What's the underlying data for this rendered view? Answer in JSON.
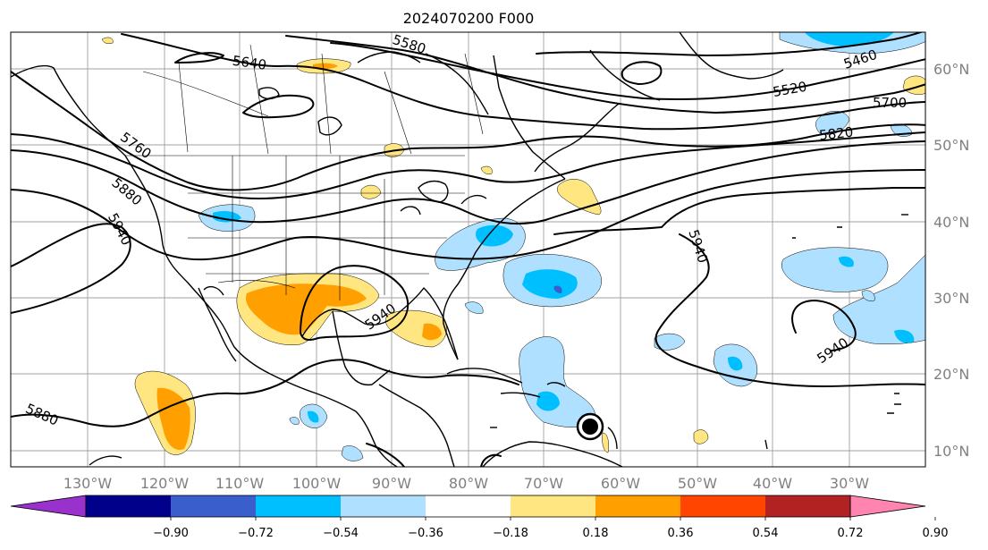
{
  "title": "2024070200 F000",
  "map": {
    "lon_ticks": [
      "130°W",
      "120°W",
      "110°W",
      "100°W",
      "90°W",
      "80°W",
      "70°W",
      "60°W",
      "50°W",
      "40°W",
      "30°W"
    ],
    "lat_ticks": [
      "60°N",
      "50°N",
      "40°N",
      "30°N",
      "20°N",
      "10°N"
    ],
    "contour_labels": [
      "5640",
      "5580",
      "5460",
      "5520",
      "5700",
      "5820",
      "5760",
      "5880",
      "5940",
      "5940",
      "5940",
      "5940",
      "5880"
    ],
    "storm_marker": "tropical-cyclone-symbol"
  },
  "colorbar": {
    "ticks": [
      "−0.90",
      "−0.72",
      "−0.54",
      "−0.36",
      "−0.18",
      "0.18",
      "0.36",
      "0.54",
      "0.72",
      "0.90"
    ],
    "colors": [
      "#9932cc",
      "#00008b",
      "#3a5fcd",
      "#00bfff",
      "#b0e0ff",
      "#ffffff",
      "#ffe680",
      "#ffa000",
      "#ff4500",
      "#b22222",
      "#ff85b0"
    ]
  }
}
